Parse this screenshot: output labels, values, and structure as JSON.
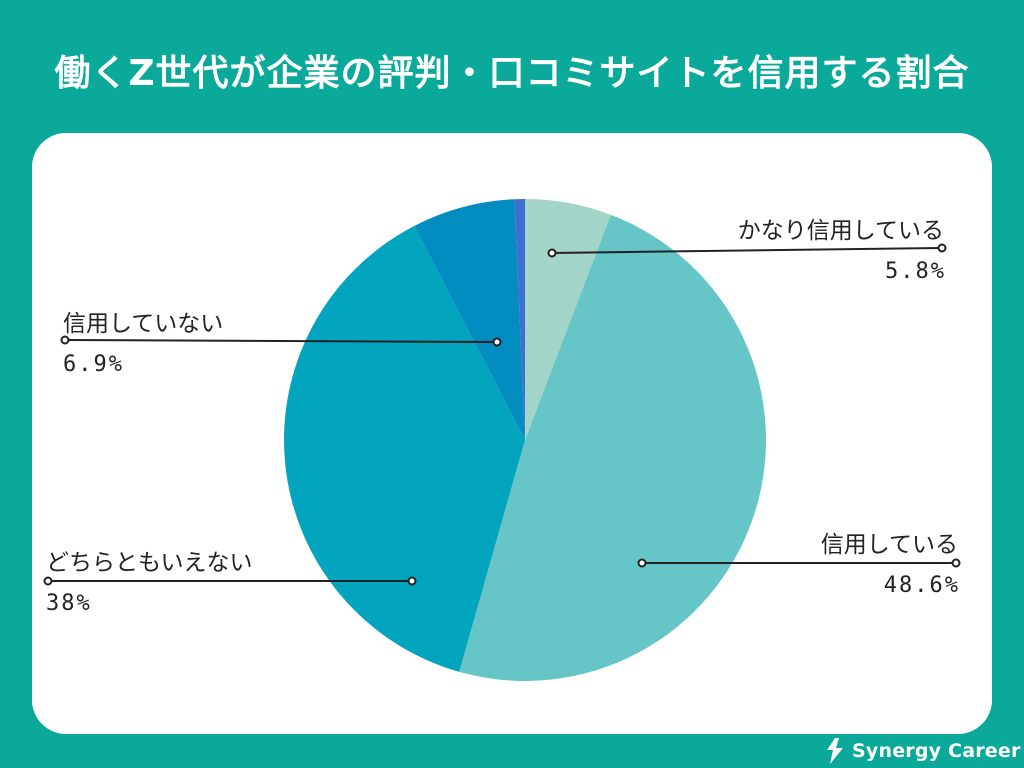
{
  "title": "働くZ世代が企業の評判・口コミサイトを信用する割合",
  "brand": {
    "name": "Synergy Career",
    "logo_icon": "synergy-logo-icon"
  },
  "colors": {
    "background": "#0aa99a",
    "card": "#ffffff"
  },
  "chart_data": {
    "type": "pie",
    "title": "働くZ世代が企業の評判・口コミサイトを信用する割合",
    "start": "12 o'clock",
    "direction": "clockwise",
    "slices": [
      {
        "label": "かなり信用している",
        "value": 5.8,
        "display": "5.8%",
        "color": "#a3d4c8"
      },
      {
        "label": "信用している",
        "value": 48.6,
        "display": "48.6%",
        "color": "#66c5c6"
      },
      {
        "label": "どちらともいえない",
        "value": 38,
        "display": "38%",
        "color": "#02a5bd"
      },
      {
        "label": "信用していない",
        "value": 6.9,
        "display": "6.9%",
        "color": "#028cc0"
      },
      {
        "label": "",
        "value": 0.7,
        "display": "",
        "color": "#3d6fd2"
      }
    ]
  }
}
